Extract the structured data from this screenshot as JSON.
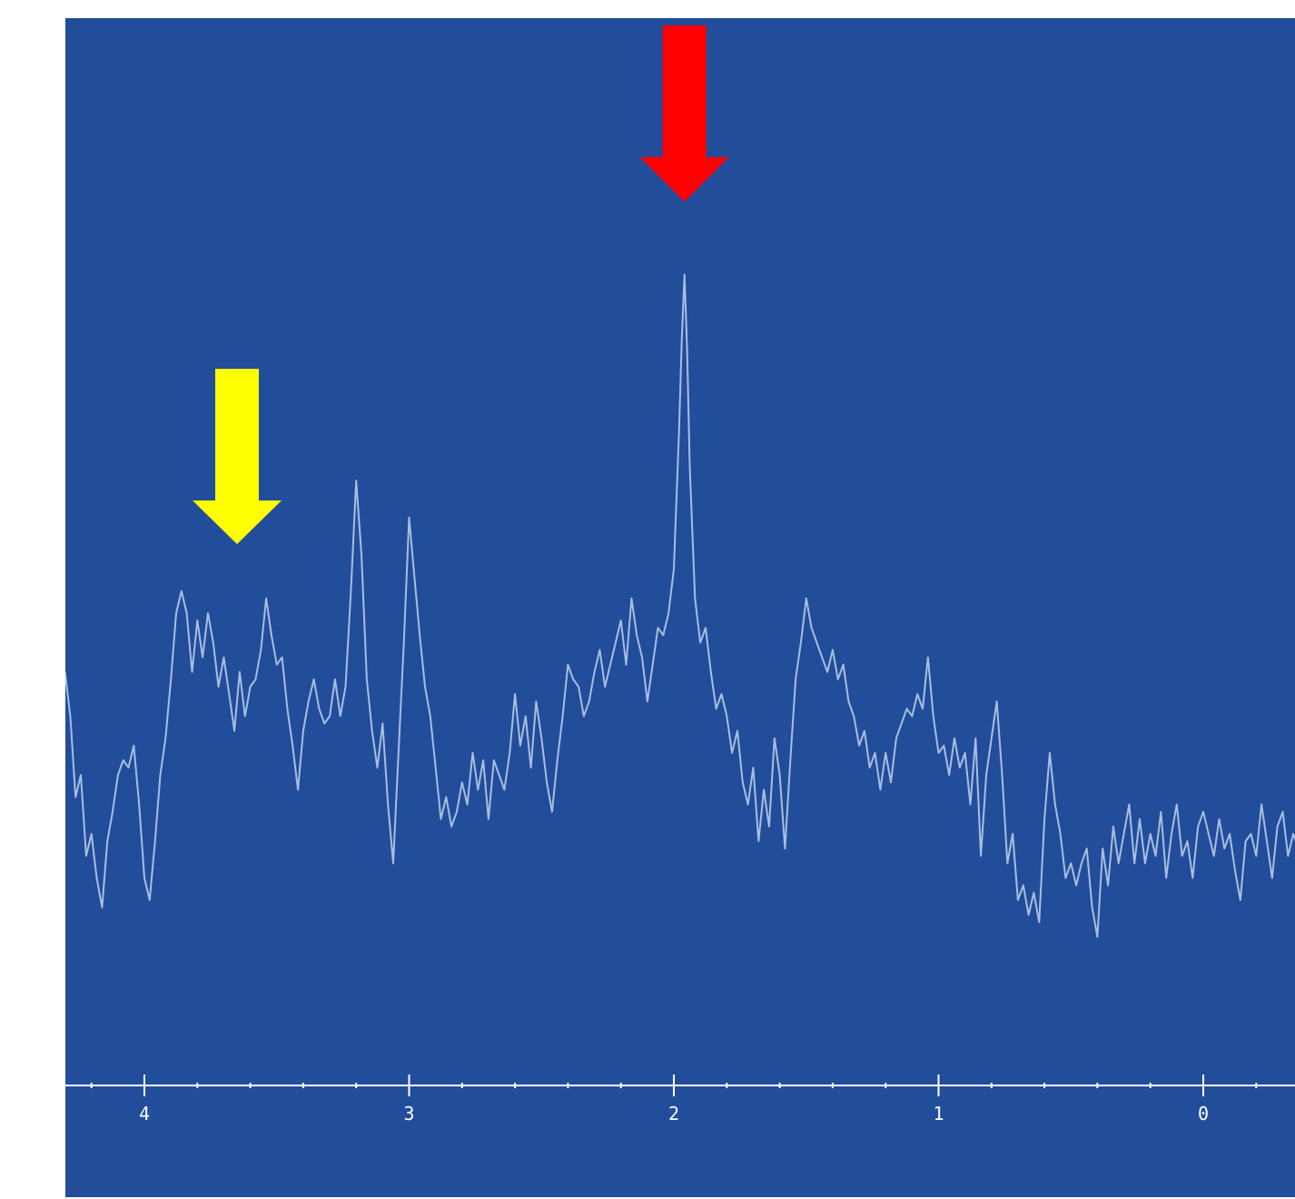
{
  "colors": {
    "page_background": "#ffffff",
    "plot_background": "#214d9b",
    "trace": "#a9bde0",
    "axis": "#ffffff",
    "arrow_main_peak": "#ff0000",
    "arrow_secondary": "#ffff00"
  },
  "chart_data": {
    "type": "line",
    "title": "",
    "xlabel": "",
    "ylabel": "",
    "x_reversed": true,
    "xlim": [
      4.3,
      -0.35
    ],
    "ylim": [
      0,
      1
    ],
    "grid": false,
    "legend": "none",
    "x_ticks": [
      {
        "value": 4,
        "label": "4"
      },
      {
        "value": 3,
        "label": "3"
      },
      {
        "value": 2,
        "label": "2"
      },
      {
        "value": 1,
        "label": "1"
      },
      {
        "value": 0,
        "label": "0"
      }
    ],
    "x_minor_step": 0.2,
    "series": [
      {
        "points": [
          [
            4.3,
            0.42
          ],
          [
            4.28,
            0.36
          ],
          [
            4.26,
            0.25
          ],
          [
            4.24,
            0.28
          ],
          [
            4.22,
            0.17
          ],
          [
            4.2,
            0.2
          ],
          [
            4.18,
            0.14
          ],
          [
            4.16,
            0.1
          ],
          [
            4.14,
            0.19
          ],
          [
            4.12,
            0.23
          ],
          [
            4.1,
            0.28
          ],
          [
            4.08,
            0.3
          ],
          [
            4.06,
            0.29
          ],
          [
            4.04,
            0.32
          ],
          [
            4.02,
            0.24
          ],
          [
            4.0,
            0.14
          ],
          [
            3.98,
            0.11
          ],
          [
            3.96,
            0.19
          ],
          [
            3.94,
            0.28
          ],
          [
            3.92,
            0.33
          ],
          [
            3.9,
            0.41
          ],
          [
            3.88,
            0.5
          ],
          [
            3.86,
            0.53
          ],
          [
            3.84,
            0.5
          ],
          [
            3.82,
            0.42
          ],
          [
            3.8,
            0.49
          ],
          [
            3.78,
            0.44
          ],
          [
            3.76,
            0.5
          ],
          [
            3.74,
            0.46
          ],
          [
            3.72,
            0.4
          ],
          [
            3.7,
            0.44
          ],
          [
            3.68,
            0.39
          ],
          [
            3.66,
            0.34
          ],
          [
            3.64,
            0.42
          ],
          [
            3.62,
            0.36
          ],
          [
            3.6,
            0.4
          ],
          [
            3.58,
            0.41
          ],
          [
            3.56,
            0.45
          ],
          [
            3.54,
            0.52
          ],
          [
            3.52,
            0.47
          ],
          [
            3.5,
            0.43
          ],
          [
            3.48,
            0.44
          ],
          [
            3.46,
            0.37
          ],
          [
            3.44,
            0.32
          ],
          [
            3.42,
            0.26
          ],
          [
            3.4,
            0.34
          ],
          [
            3.38,
            0.38
          ],
          [
            3.36,
            0.41
          ],
          [
            3.34,
            0.37
          ],
          [
            3.32,
            0.35
          ],
          [
            3.3,
            0.36
          ],
          [
            3.28,
            0.41
          ],
          [
            3.26,
            0.36
          ],
          [
            3.24,
            0.4
          ],
          [
            3.22,
            0.53
          ],
          [
            3.2,
            0.68
          ],
          [
            3.18,
            0.58
          ],
          [
            3.16,
            0.41
          ],
          [
            3.14,
            0.34
          ],
          [
            3.12,
            0.29
          ],
          [
            3.1,
            0.35
          ],
          [
            3.08,
            0.24
          ],
          [
            3.06,
            0.16
          ],
          [
            3.04,
            0.31
          ],
          [
            3.02,
            0.46
          ],
          [
            3.0,
            0.63
          ],
          [
            2.98,
            0.55
          ],
          [
            2.96,
            0.47
          ],
          [
            2.94,
            0.4
          ],
          [
            2.92,
            0.36
          ],
          [
            2.9,
            0.29
          ],
          [
            2.88,
            0.22
          ],
          [
            2.86,
            0.25
          ],
          [
            2.84,
            0.21
          ],
          [
            2.82,
            0.23
          ],
          [
            2.8,
            0.27
          ],
          [
            2.78,
            0.24
          ],
          [
            2.76,
            0.31
          ],
          [
            2.74,
            0.26
          ],
          [
            2.72,
            0.3
          ],
          [
            2.7,
            0.22
          ],
          [
            2.68,
            0.3
          ],
          [
            2.66,
            0.28
          ],
          [
            2.64,
            0.26
          ],
          [
            2.62,
            0.31
          ],
          [
            2.6,
            0.39
          ],
          [
            2.58,
            0.32
          ],
          [
            2.56,
            0.36
          ],
          [
            2.54,
            0.29
          ],
          [
            2.52,
            0.38
          ],
          [
            2.5,
            0.33
          ],
          [
            2.48,
            0.27
          ],
          [
            2.46,
            0.23
          ],
          [
            2.44,
            0.3
          ],
          [
            2.42,
            0.36
          ],
          [
            2.4,
            0.43
          ],
          [
            2.38,
            0.41
          ],
          [
            2.36,
            0.4
          ],
          [
            2.34,
            0.36
          ],
          [
            2.32,
            0.38
          ],
          [
            2.3,
            0.42
          ],
          [
            2.28,
            0.45
          ],
          [
            2.26,
            0.4
          ],
          [
            2.24,
            0.43
          ],
          [
            2.22,
            0.46
          ],
          [
            2.2,
            0.49
          ],
          [
            2.18,
            0.43
          ],
          [
            2.16,
            0.52
          ],
          [
            2.14,
            0.47
          ],
          [
            2.12,
            0.44
          ],
          [
            2.1,
            0.38
          ],
          [
            2.08,
            0.43
          ],
          [
            2.06,
            0.48
          ],
          [
            2.04,
            0.47
          ],
          [
            2.02,
            0.5
          ],
          [
            2.0,
            0.56
          ],
          [
            1.98,
            0.75
          ],
          [
            1.97,
            0.87
          ],
          [
            1.96,
            0.96
          ],
          [
            1.95,
            0.86
          ],
          [
            1.94,
            0.7
          ],
          [
            1.92,
            0.52
          ],
          [
            1.9,
            0.46
          ],
          [
            1.88,
            0.48
          ],
          [
            1.86,
            0.42
          ],
          [
            1.84,
            0.37
          ],
          [
            1.82,
            0.39
          ],
          [
            1.8,
            0.36
          ],
          [
            1.78,
            0.31
          ],
          [
            1.76,
            0.34
          ],
          [
            1.74,
            0.27
          ],
          [
            1.72,
            0.24
          ],
          [
            1.7,
            0.29
          ],
          [
            1.68,
            0.19
          ],
          [
            1.66,
            0.26
          ],
          [
            1.64,
            0.21
          ],
          [
            1.62,
            0.33
          ],
          [
            1.6,
            0.28
          ],
          [
            1.58,
            0.18
          ],
          [
            1.56,
            0.3
          ],
          [
            1.54,
            0.41
          ],
          [
            1.52,
            0.46
          ],
          [
            1.5,
            0.52
          ],
          [
            1.48,
            0.48
          ],
          [
            1.46,
            0.46
          ],
          [
            1.44,
            0.44
          ],
          [
            1.42,
            0.42
          ],
          [
            1.4,
            0.45
          ],
          [
            1.38,
            0.41
          ],
          [
            1.36,
            0.43
          ],
          [
            1.34,
            0.38
          ],
          [
            1.32,
            0.36
          ],
          [
            1.3,
            0.32
          ],
          [
            1.28,
            0.34
          ],
          [
            1.26,
            0.29
          ],
          [
            1.24,
            0.31
          ],
          [
            1.22,
            0.26
          ],
          [
            1.2,
            0.31
          ],
          [
            1.18,
            0.27
          ],
          [
            1.16,
            0.33
          ],
          [
            1.14,
            0.35
          ],
          [
            1.12,
            0.37
          ],
          [
            1.1,
            0.36
          ],
          [
            1.08,
            0.39
          ],
          [
            1.06,
            0.37
          ],
          [
            1.04,
            0.44
          ],
          [
            1.02,
            0.36
          ],
          [
            1.0,
            0.31
          ],
          [
            0.98,
            0.32
          ],
          [
            0.96,
            0.28
          ],
          [
            0.94,
            0.33
          ],
          [
            0.92,
            0.29
          ],
          [
            0.9,
            0.31
          ],
          [
            0.88,
            0.24
          ],
          [
            0.86,
            0.33
          ],
          [
            0.84,
            0.17
          ],
          [
            0.82,
            0.28
          ],
          [
            0.8,
            0.33
          ],
          [
            0.78,
            0.38
          ],
          [
            0.76,
            0.28
          ],
          [
            0.74,
            0.16
          ],
          [
            0.72,
            0.2
          ],
          [
            0.7,
            0.11
          ],
          [
            0.68,
            0.13
          ],
          [
            0.66,
            0.09
          ],
          [
            0.64,
            0.12
          ],
          [
            0.62,
            0.08
          ],
          [
            0.6,
            0.22
          ],
          [
            0.58,
            0.31
          ],
          [
            0.56,
            0.24
          ],
          [
            0.54,
            0.2
          ],
          [
            0.52,
            0.14
          ],
          [
            0.5,
            0.16
          ],
          [
            0.48,
            0.13
          ],
          [
            0.46,
            0.16
          ],
          [
            0.44,
            0.18
          ],
          [
            0.42,
            0.1
          ],
          [
            0.4,
            0.06
          ],
          [
            0.38,
            0.18
          ],
          [
            0.36,
            0.13
          ],
          [
            0.34,
            0.21
          ],
          [
            0.32,
            0.16
          ],
          [
            0.3,
            0.2
          ],
          [
            0.28,
            0.24
          ],
          [
            0.26,
            0.16
          ],
          [
            0.24,
            0.22
          ],
          [
            0.22,
            0.16
          ],
          [
            0.2,
            0.2
          ],
          [
            0.18,
            0.17
          ],
          [
            0.16,
            0.23
          ],
          [
            0.14,
            0.14
          ],
          [
            0.12,
            0.2
          ],
          [
            0.1,
            0.24
          ],
          [
            0.08,
            0.17
          ],
          [
            0.06,
            0.19
          ],
          [
            0.04,
            0.14
          ],
          [
            0.02,
            0.21
          ],
          [
            0.0,
            0.23
          ],
          [
            -0.02,
            0.2
          ],
          [
            -0.04,
            0.17
          ],
          [
            -0.06,
            0.22
          ],
          [
            -0.08,
            0.18
          ],
          [
            -0.1,
            0.2
          ],
          [
            -0.12,
            0.15
          ],
          [
            -0.14,
            0.11
          ],
          [
            -0.16,
            0.19
          ],
          [
            -0.18,
            0.2
          ],
          [
            -0.2,
            0.17
          ],
          [
            -0.22,
            0.24
          ],
          [
            -0.24,
            0.19
          ],
          [
            -0.26,
            0.14
          ],
          [
            -0.28,
            0.21
          ],
          [
            -0.3,
            0.23
          ],
          [
            -0.32,
            0.17
          ],
          [
            -0.34,
            0.2
          ],
          [
            -0.35,
            0.19
          ]
        ]
      }
    ],
    "annotations": [
      {
        "type": "arrow",
        "color": "red",
        "x": 1.96,
        "points": "down"
      },
      {
        "type": "arrow",
        "color": "yellow",
        "x": 3.65,
        "points": "down"
      }
    ]
  }
}
